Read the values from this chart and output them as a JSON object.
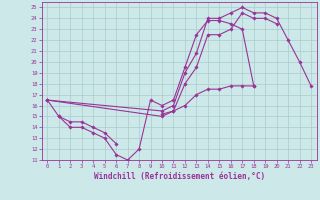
{
  "xlabel": "Windchill (Refroidissement éolien,°C)",
  "bg_color": "#cce8e8",
  "line_color": "#993399",
  "grid_color": "#aacccc",
  "xlim": [
    -0.5,
    23.5
  ],
  "ylim": [
    11,
    25.5
  ],
  "xticks": [
    0,
    1,
    2,
    3,
    4,
    5,
    6,
    7,
    8,
    9,
    10,
    11,
    12,
    13,
    14,
    15,
    16,
    17,
    18,
    19,
    20,
    21,
    22,
    23
  ],
  "yticks": [
    11,
    12,
    13,
    14,
    15,
    16,
    17,
    18,
    19,
    20,
    21,
    22,
    23,
    24,
    25
  ],
  "lines": [
    {
      "segments": [
        {
          "x": [
            0,
            1,
            2,
            3,
            4,
            5,
            6,
            7,
            8,
            9,
            10,
            11,
            12,
            13,
            14,
            15,
            16,
            17,
            18
          ],
          "y": [
            16.5,
            15.0,
            14.0,
            14.0,
            13.5,
            13.0,
            11.5,
            11.0,
            12.0,
            16.5,
            16.0,
            16.5,
            19.5,
            22.5,
            23.8,
            23.8,
            23.5,
            23.0,
            17.8
          ]
        }
      ]
    },
    {
      "segments": [
        {
          "x": [
            0,
            10,
            11,
            12,
            13,
            14,
            15,
            16,
            17,
            18,
            19,
            20,
            21,
            22,
            23
          ],
          "y": [
            16.5,
            15.5,
            16.0,
            19.0,
            20.8,
            24.0,
            24.0,
            24.5,
            25.0,
            24.5,
            24.5,
            24.0,
            22.0,
            20.0,
            17.8
          ]
        }
      ]
    },
    {
      "segments": [
        {
          "x": [
            0,
            10,
            11,
            12,
            13,
            14,
            15,
            16,
            17,
            18,
            19,
            20
          ],
          "y": [
            16.5,
            15.0,
            15.5,
            18.0,
            19.5,
            22.5,
            22.5,
            23.0,
            24.5,
            24.0,
            24.0,
            23.5
          ]
        }
      ]
    },
    {
      "segments": [
        {
          "x": [
            1,
            2,
            3,
            4,
            5,
            6
          ],
          "y": [
            15.0,
            14.5,
            14.5,
            14.0,
            13.5,
            12.5
          ]
        },
        {
          "x": [
            10,
            11,
            12,
            13,
            14,
            15,
            16,
            17,
            18
          ],
          "y": [
            15.2,
            15.5,
            16.0,
            17.0,
            17.5,
            17.5,
            17.8,
            17.8,
            17.8
          ]
        }
      ]
    }
  ],
  "marker": "D",
  "markersize": 1.8,
  "linewidth": 0.8,
  "tick_fontsize": 4.0,
  "xlabel_fontsize": 5.5
}
